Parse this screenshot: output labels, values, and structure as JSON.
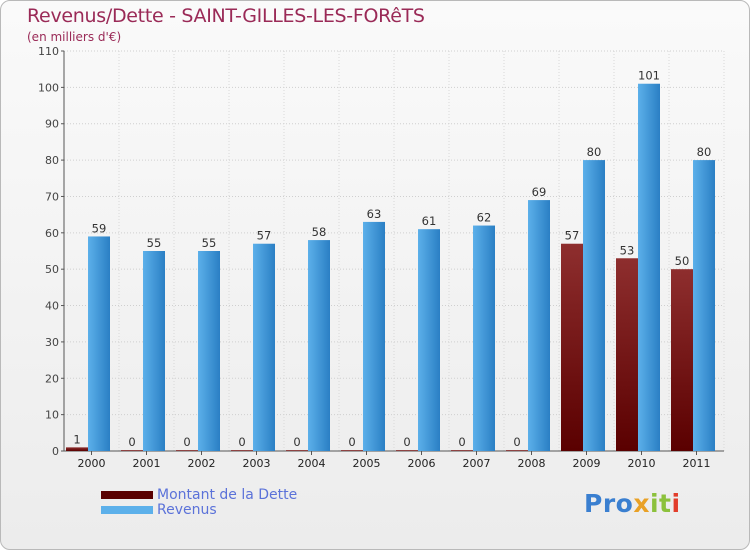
{
  "colors": {
    "dette_dark": "#5a0000",
    "dette_light": "#8e2e2e",
    "revenus_dark": "#2a7fc4",
    "revenus_light": "#5cb0ea",
    "title": "#9a2a57",
    "legend_text": "#5b72d9"
  },
  "logo": {
    "text": "Proxiti",
    "parts": [
      "Pro",
      "x",
      "it",
      "i"
    ]
  },
  "chart_data": {
    "type": "bar",
    "title": "Revenus/Dette - SAINT-GILLES-LES-FORêTS",
    "subtitle": "(en milliers d'€)",
    "xlabel": "",
    "ylabel": "",
    "ylim": [
      0,
      110
    ],
    "yticks": [
      0,
      10,
      20,
      30,
      40,
      50,
      60,
      70,
      80,
      90,
      100,
      110
    ],
    "grid": true,
    "legend_position": "bottom-left",
    "categories": [
      "2000",
      "2001",
      "2002",
      "2003",
      "2004",
      "2005",
      "2006",
      "2007",
      "2008",
      "2009",
      "2010",
      "2011"
    ],
    "series": [
      {
        "name": "Montant de la Dette",
        "values": [
          1,
          0,
          0,
          0,
          0,
          0,
          0,
          0,
          0,
          57,
          53,
          50
        ]
      },
      {
        "name": "Revenus",
        "values": [
          59,
          55,
          55,
          57,
          58,
          63,
          61,
          62,
          69,
          80,
          101,
          80
        ]
      }
    ]
  }
}
